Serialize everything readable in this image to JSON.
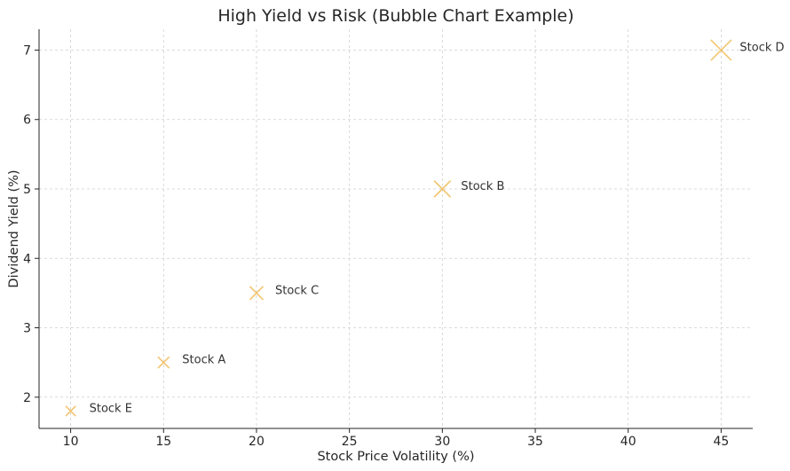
{
  "chart_data": {
    "type": "scatter",
    "title": "High Yield vs Risk (Bubble Chart Example)",
    "xlabel": "Stock Price Volatility (%)",
    "ylabel": "Dividend Yield (%)",
    "xlim": [
      8.3,
      46.7
    ],
    "ylim": [
      1.55,
      7.3
    ],
    "xticks": [
      10,
      15,
      20,
      25,
      30,
      35,
      40,
      45
    ],
    "yticks": [
      2,
      3,
      4,
      5,
      6,
      7
    ],
    "grid": true,
    "marker": "x",
    "marker_color": "#f2c570",
    "points": [
      {
        "label": "Stock A",
        "x": 15,
        "y": 2.5,
        "size": 2.5
      },
      {
        "label": "Stock B",
        "x": 30,
        "y": 5.0,
        "size": 5.0
      },
      {
        "label": "Stock C",
        "x": 20,
        "y": 3.5,
        "size": 3.5
      },
      {
        "label": "Stock D",
        "x": 45,
        "y": 7.0,
        "size": 7.0
      },
      {
        "label": "Stock E",
        "x": 10,
        "y": 1.8,
        "size": 1.8
      }
    ]
  }
}
